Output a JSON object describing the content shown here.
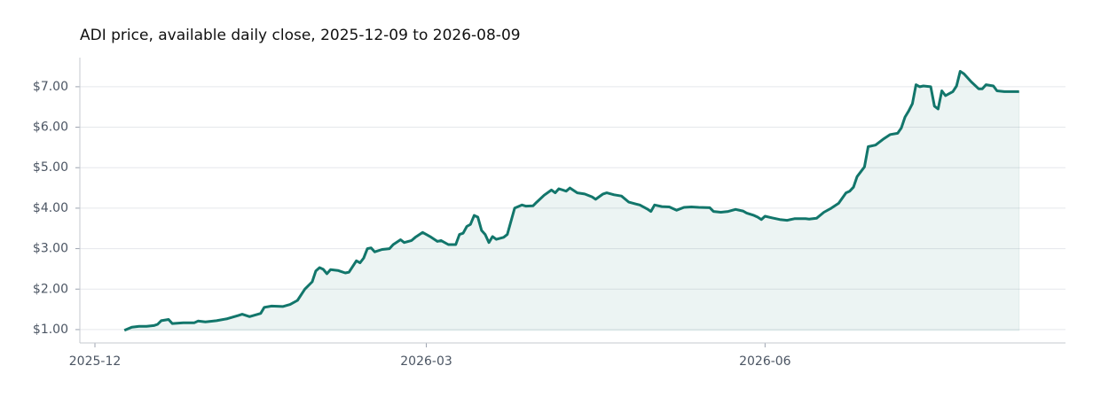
{
  "chart_data": {
    "type": "line",
    "title": "ADI price, available daily close, 2025-12-09 to 2026-08-09",
    "color": "#12766b",
    "area": true,
    "grid": true,
    "x": [
      8,
      10,
      12,
      14,
      16,
      17,
      18,
      20,
      21,
      24,
      27,
      28,
      30,
      33,
      36,
      39,
      40,
      42,
      45,
      46,
      48,
      51,
      53,
      55,
      57,
      59,
      60,
      61,
      62,
      63,
      64,
      66,
      68,
      69,
      71,
      72,
      73,
      74,
      75,
      76,
      78,
      80,
      81,
      83,
      84,
      86,
      87,
      89,
      90,
      91,
      93,
      94,
      96,
      98,
      99,
      100,
      101,
      102,
      103,
      104,
      105,
      106,
      107,
      108,
      109,
      111,
      112,
      114,
      116,
      117,
      119,
      120,
      122,
      124,
      125,
      126,
      128,
      129,
      131,
      133,
      135,
      136,
      138,
      139,
      141,
      143,
      145,
      147,
      148,
      150,
      151,
      152,
      154,
      156,
      158,
      160,
      162,
      164,
      167,
      168,
      170,
      172,
      174,
      176,
      177,
      179,
      180,
      181,
      182,
      184,
      186,
      188,
      190,
      193,
      194,
      196,
      198,
      200,
      202,
      204,
      205,
      206,
      207,
      209,
      210,
      212,
      214,
      216,
      218,
      219,
      220,
      221,
      222,
      223,
      224,
      225,
      227,
      228,
      229,
      230,
      231,
      233,
      234,
      235,
      236,
      238,
      240,
      241,
      242,
      244,
      245,
      247,
      250,
      251
    ],
    "values": [
      0.98,
      1.06,
      1.08,
      1.08,
      1.1,
      1.13,
      1.22,
      1.25,
      1.15,
      1.17,
      1.17,
      1.21,
      1.19,
      1.22,
      1.27,
      1.35,
      1.38,
      1.32,
      1.4,
      1.55,
      1.58,
      1.57,
      1.62,
      1.72,
      2.0,
      2.18,
      2.45,
      2.53,
      2.49,
      2.38,
      2.48,
      2.46,
      2.4,
      2.42,
      2.7,
      2.65,
      2.77,
      3.0,
      3.02,
      2.92,
      2.98,
      3.0,
      3.1,
      3.22,
      3.15,
      3.2,
      3.28,
      3.4,
      3.35,
      3.3,
      3.18,
      3.2,
      3.1,
      3.1,
      3.35,
      3.38,
      3.55,
      3.6,
      3.82,
      3.78,
      3.45,
      3.35,
      3.15,
      3.3,
      3.23,
      3.28,
      3.35,
      4.0,
      4.08,
      4.05,
      4.06,
      4.15,
      4.32,
      4.45,
      4.38,
      4.48,
      4.42,
      4.5,
      4.38,
      4.35,
      4.28,
      4.22,
      4.35,
      4.38,
      4.33,
      4.3,
      4.15,
      4.1,
      4.08,
      3.98,
      3.92,
      4.08,
      4.04,
      4.03,
      3.95,
      4.02,
      4.03,
      4.02,
      4.01,
      3.92,
      3.9,
      3.92,
      3.97,
      3.93,
      3.88,
      3.82,
      3.78,
      3.72,
      3.8,
      3.76,
      3.72,
      3.7,
      3.74,
      3.74,
      3.73,
      3.75,
      3.9,
      4.0,
      4.12,
      4.38,
      4.42,
      4.52,
      4.78,
      5.02,
      5.52,
      5.56,
      5.7,
      5.82,
      5.85,
      5.98,
      6.25,
      6.4,
      6.58,
      7.05,
      7.0,
      7.02,
      7.0,
      6.52,
      6.45,
      6.9,
      6.78,
      6.88,
      7.02,
      7.38,
      7.32,
      7.12,
      6.95,
      6.95,
      7.05,
      7.02,
      6.9,
      6.88,
      6.88,
      6.88
    ],
    "xlim": [
      -4.1,
      263.6
    ],
    "xticks": [
      {
        "value": 0,
        "label": "2025-12"
      },
      {
        "value": 90,
        "label": "2026-03"
      },
      {
        "value": 182,
        "label": "2026-06"
      }
    ],
    "ylim": [
      0.67,
      7.72
    ],
    "yticks": [
      {
        "value": 1,
        "label": "$1.00"
      },
      {
        "value": 2,
        "label": "$2.00"
      },
      {
        "value": 3,
        "label": "$3.00"
      },
      {
        "value": 4,
        "label": "$4.00"
      },
      {
        "value": 5,
        "label": "$5.00"
      },
      {
        "value": 6,
        "label": "$6.00"
      },
      {
        "value": 7,
        "label": "$7.00"
      }
    ]
  }
}
